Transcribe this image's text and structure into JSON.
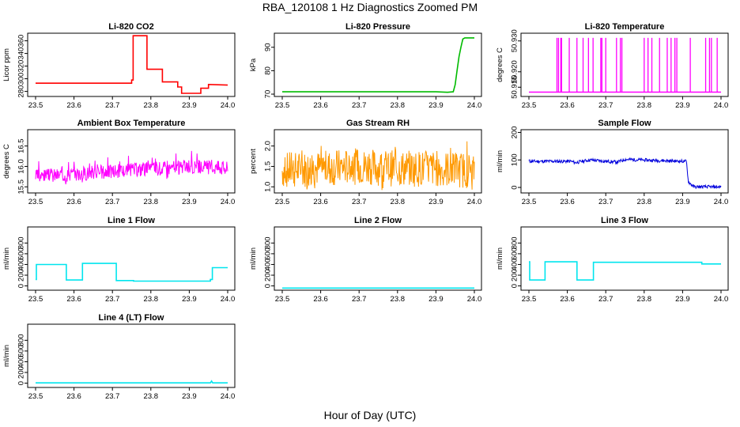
{
  "page": {
    "title": "RBA_120108  1 Hz Diagnostics Zoomed PM",
    "xlabel": "Hour of Day (UTC)"
  },
  "chart_data": [
    {
      "id": "co2",
      "type": "line",
      "title": "Li-820 CO2",
      "ylabel": "Licor ppm",
      "color": "#ff0000",
      "xlim": [
        23.5,
        24.0
      ],
      "ylim": [
        272,
        372
      ],
      "xticks": [
        "23.5",
        "23.6",
        "23.7",
        "23.8",
        "23.9",
        "24.0"
      ],
      "yticks": [
        280,
        300,
        320,
        340,
        360
      ],
      "series": [
        {
          "name": "CO2",
          "x": [
            23.5,
            23.75,
            23.75,
            23.754,
            23.754,
            23.79,
            23.79,
            23.83,
            23.83,
            23.87,
            23.87,
            23.88,
            23.88,
            23.93,
            23.93,
            23.95,
            23.95,
            24.0
          ],
          "values": [
            293,
            293,
            298,
            298,
            368,
            368,
            315,
            315,
            295,
            295,
            287,
            287,
            277,
            277,
            285,
            285,
            291,
            290
          ]
        }
      ]
    },
    {
      "id": "pressure",
      "type": "line",
      "title": "Li-820 Pressure",
      "ylabel": "kPa",
      "color": "#00bb00",
      "xlim": [
        23.5,
        24.0
      ],
      "ylim": [
        69,
        96
      ],
      "xticks": [
        "23.5",
        "23.6",
        "23.7",
        "23.8",
        "23.9",
        "24.0"
      ],
      "yticks": [
        70,
        80,
        90
      ],
      "series": [
        {
          "name": "Pressure",
          "x": [
            23.5,
            23.85,
            23.9,
            23.93,
            23.945,
            23.95,
            23.955,
            23.96,
            23.965,
            23.97,
            23.975,
            24.0
          ],
          "values": [
            71,
            71,
            71,
            70.8,
            71,
            74,
            80,
            86,
            90,
            93.5,
            94,
            94
          ]
        }
      ]
    },
    {
      "id": "licor_temp",
      "type": "line",
      "title": "Li-820 Temperature",
      "ylabel": "degrees C",
      "color": "#ff00ff",
      "xlim": [
        23.5,
        24.0
      ],
      "ylim": [
        50.912,
        50.9325
      ],
      "xticks": [
        "23.5",
        "23.6",
        "23.7",
        "23.8",
        "23.9",
        "24.0"
      ],
      "yticks": [
        "50.915",
        "50.920",
        "50.930"
      ],
      "series": [
        {
          "name": "Temperature",
          "x": [
            23.5,
            23.6,
            23.7,
            23.8,
            23.9,
            24.0
          ],
          "values": [
            50.9134,
            50.9134,
            50.9134,
            50.9134,
            50.9134,
            50.9134
          ]
        }
      ],
      "spike_x": [
        23.573,
        23.577,
        23.583,
        23.585,
        23.605,
        23.625,
        23.641,
        23.655,
        23.667,
        23.687,
        23.69,
        23.7,
        23.728,
        23.738,
        23.742,
        23.8,
        23.81,
        23.82,
        23.84,
        23.86,
        23.87,
        23.88,
        23.885,
        23.92,
        23.96,
        23.97,
        23.975,
        23.99
      ],
      "spike_top": 50.931,
      "base": 50.9134
    },
    {
      "id": "ambient_temp",
      "type": "line",
      "title": "Ambient Box Temperature",
      "ylabel": "degrees C",
      "color": "#ff00ff",
      "xlim": [
        23.5,
        24.0
      ],
      "ylim": [
        15.35,
        16.9
      ],
      "xticks": [
        "23.5",
        "23.6",
        "23.7",
        "23.8",
        "23.9",
        "24.0"
      ],
      "yticks": [
        "15.5",
        "16.0",
        "16.5"
      ],
      "series": [
        {
          "name": "Ambient",
          "x": [
            23.5,
            23.6,
            23.7,
            23.8,
            23.9,
            24.0
          ],
          "values": [
            15.75,
            15.82,
            15.88,
            15.95,
            15.98,
            15.98
          ]
        }
      ],
      "noise": {
        "amp": 0.18,
        "spike": 0.5,
        "seed": 3
      }
    },
    {
      "id": "rh",
      "type": "line",
      "title": "Gas Stream RH",
      "ylabel": "percent",
      "color": "#ff9900",
      "xlim": [
        23.5,
        24.0
      ],
      "ylim": [
        0.85,
        2.4
      ],
      "xticks": [
        "23.5",
        "23.6",
        "23.7",
        "23.8",
        "23.9",
        "24.0"
      ],
      "yticks": [
        "1.0",
        "1.5",
        "2.0"
      ],
      "series": [
        {
          "name": "RH",
          "x": [
            23.5,
            23.6,
            23.7,
            23.8,
            23.9,
            24.0
          ],
          "values": [
            1.4,
            1.45,
            1.5,
            1.45,
            1.45,
            1.4
          ]
        }
      ],
      "noise": {
        "amp": 0.45,
        "spike": 0.9,
        "seed": 7
      }
    },
    {
      "id": "sample_flow",
      "type": "line",
      "title": "Sample Flow",
      "ylabel": "ml/min",
      "color": "#0000dd",
      "xlim": [
        23.5,
        24.0
      ],
      "ylim": [
        -20,
        210
      ],
      "xticks": [
        "23.5",
        "23.6",
        "23.7",
        "23.8",
        "23.9",
        "24.0"
      ],
      "yticks": [
        0,
        100,
        200
      ],
      "series": [
        {
          "name": "Sample",
          "x": [
            23.5,
            23.61,
            23.62,
            23.65,
            23.66,
            23.7,
            23.73,
            23.75,
            23.9,
            23.91,
            23.915,
            23.93,
            24.0
          ],
          "values": [
            95,
            95,
            90,
            98,
            100,
            95,
            92,
            102,
            95,
            95,
            20,
            2,
            2
          ]
        }
      ],
      "noise": {
        "amp": 6,
        "spike": 0,
        "seed": 11
      }
    },
    {
      "id": "line1",
      "type": "line",
      "title": "Line 1 Flow",
      "ylabel": "ml/min",
      "color": "#00e5ee",
      "xlim": [
        23.5,
        24.0
      ],
      "ylim": [
        -80,
        1100
      ],
      "xticks": [
        "23.5",
        "23.6",
        "23.7",
        "23.8",
        "23.9",
        "24.0"
      ],
      "yticks": [
        0,
        200,
        400,
        600,
        800
      ],
      "series": [
        {
          "name": "Line 1",
          "x": [
            23.5,
            23.502,
            23.502,
            23.58,
            23.58,
            23.622,
            23.622,
            23.71,
            23.71,
            23.755,
            23.755,
            23.955,
            23.955,
            23.96,
            23.96,
            24.0
          ],
          "values": [
            120,
            120,
            400,
            400,
            110,
            110,
            420,
            420,
            100,
            100,
            90,
            90,
            120,
            120,
            340,
            340
          ]
        }
      ]
    },
    {
      "id": "line2",
      "type": "line",
      "title": "Line 2 Flow",
      "ylabel": "ml/min",
      "color": "#00e5ee",
      "xlim": [
        23.5,
        24.0
      ],
      "ylim": [
        -80,
        1100
      ],
      "xticks": [
        "23.5",
        "23.6",
        "23.7",
        "23.8",
        "23.9",
        "24.0"
      ],
      "yticks": [
        0,
        200,
        400,
        600,
        800
      ],
      "series": [
        {
          "name": "Line 2",
          "x": [
            23.5,
            24.0
          ],
          "values": [
            -40,
            -40
          ]
        }
      ]
    },
    {
      "id": "line3",
      "type": "line",
      "title": "Line 3 Flow",
      "ylabel": "ml/min",
      "color": "#00e5ee",
      "xlim": [
        23.5,
        24.0
      ],
      "ylim": [
        -80,
        1100
      ],
      "xticks": [
        "23.5",
        "23.6",
        "23.7",
        "23.8",
        "23.9",
        "24.0"
      ],
      "yticks": [
        0,
        200,
        400,
        600,
        800
      ],
      "series": [
        {
          "name": "Line 3",
          "x": [
            23.5,
            23.502,
            23.502,
            23.542,
            23.542,
            23.625,
            23.625,
            23.668,
            23.668,
            23.95,
            23.95,
            24.0
          ],
          "values": [
            450,
            450,
            110,
            110,
            450,
            450,
            110,
            110,
            440,
            440,
            410,
            410
          ]
        }
      ]
    },
    {
      "id": "line4",
      "type": "line",
      "title": "Line 4 (LT) Flow",
      "ylabel": "ml/min",
      "color": "#00e5ee",
      "xlim": [
        23.5,
        24.0
      ],
      "ylim": [
        -80,
        1100
      ],
      "xticks": [
        "23.5",
        "23.6",
        "23.7",
        "23.8",
        "23.9",
        "24.0"
      ],
      "yticks": [
        0,
        200,
        400,
        600,
        800
      ],
      "series": [
        {
          "name": "Line 4",
          "x": [
            23.5,
            23.955,
            23.958,
            23.961,
            24.0
          ],
          "values": [
            5,
            5,
            40,
            5,
            5
          ]
        }
      ]
    }
  ]
}
